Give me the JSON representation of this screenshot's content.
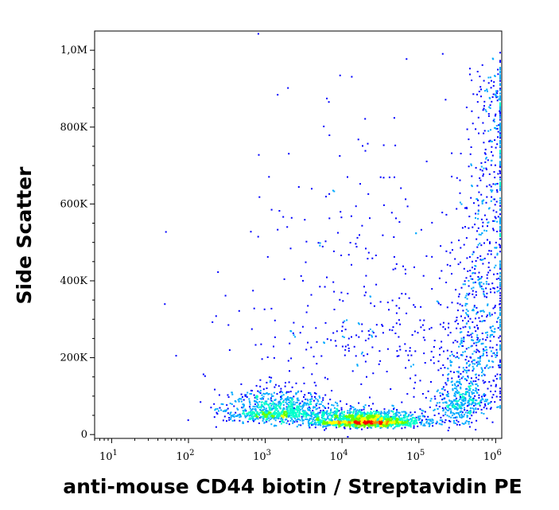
{
  "chart_data": {
    "type": "scatter",
    "title": "",
    "xlabel": "anti-mouse CD44 biotin / Streptavidin PE",
    "ylabel": "Side Scatter",
    "x_scale": "log",
    "xlim": [
      6,
      1200000
    ],
    "ylim": [
      -10000,
      1050000
    ],
    "x_ticks": [
      {
        "value": 10,
        "base": "10",
        "exp": "1"
      },
      {
        "value": 100,
        "base": "10",
        "exp": "2"
      },
      {
        "value": 1000,
        "base": "10",
        "exp": "3"
      },
      {
        "value": 10000,
        "base": "10",
        "exp": "4"
      },
      {
        "value": 100000,
        "base": "10",
        "exp": "5"
      },
      {
        "value": 1000000,
        "base": "10",
        "exp": "6"
      }
    ],
    "y_ticks": [
      {
        "value": 0,
        "label": "0"
      },
      {
        "value": 200000,
        "label": "200K"
      },
      {
        "value": 400000,
        "label": "400K"
      },
      {
        "value": 600000,
        "label": "600K"
      },
      {
        "value": 800000,
        "label": "800K"
      },
      {
        "value": 1000000,
        "label": "1,0M"
      }
    ],
    "grid": false,
    "legend": "none",
    "colormap": [
      "#0000ff",
      "#00aaff",
      "#00ffcc",
      "#66ff00",
      "#ffff00",
      "#ff8800",
      "#ff0000"
    ],
    "populations": [
      {
        "name_desc": "main CD44+ low-SSC cluster",
        "x_center": 20000,
        "y_center": 35000,
        "x_spread_decades": 0.35,
        "y_spread": 15000,
        "weight": 0.4
      },
      {
        "name_desc": "left low-expression cluster",
        "x_center": 1500,
        "y_center": 60000,
        "x_spread_decades": 0.35,
        "y_spread": 30000,
        "weight": 0.22
      },
      {
        "name_desc": "rising high-SSC tail",
        "x_center": 300000,
        "y_center": 200000,
        "x_spread_decades": 0.2,
        "y_spread": 130000,
        "weight": 0.28
      },
      {
        "name_desc": "sparse background",
        "x_center": 30000,
        "y_center": 300000,
        "x_spread_decades": 1.0,
        "y_spread": 250000,
        "weight": 0.1
      }
    ]
  }
}
